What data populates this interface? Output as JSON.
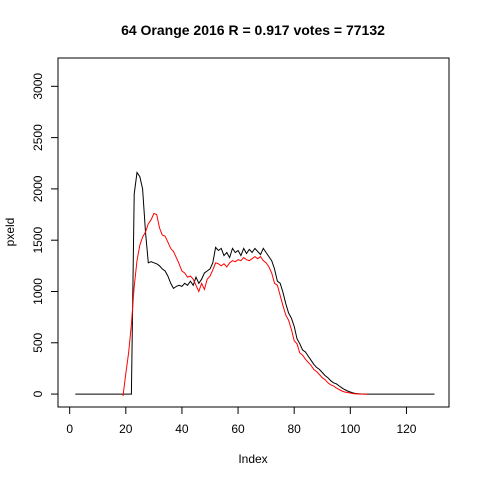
{
  "chart_data": {
    "type": "line",
    "title": "64 Orange 2016 R = 0.917 votes = 77132",
    "xlabel": "Index",
    "ylabel": "pxeld",
    "xlim": [
      1,
      130
    ],
    "ylim": [
      0,
      3150
    ],
    "x_ticks": [
      0,
      20,
      40,
      60,
      80,
      100,
      120
    ],
    "y_ticks": [
      0,
      500,
      1000,
      1500,
      2000,
      2500,
      3000
    ],
    "grid": false,
    "legend": "none",
    "colors": {
      "series1": "#000000",
      "series2": "#ff0000"
    },
    "series": [
      {
        "x": [
          2,
          3,
          4,
          5,
          6,
          7,
          8,
          9,
          10,
          11,
          12,
          13,
          14,
          15,
          16,
          17,
          18,
          19,
          20,
          21,
          22,
          23,
          24,
          25,
          26,
          27,
          28,
          29,
          30,
          31,
          32,
          33,
          34,
          35,
          36,
          37,
          38,
          39,
          40,
          41,
          42,
          43,
          44,
          45,
          46,
          47,
          48,
          49,
          50,
          51,
          52,
          53,
          54,
          55,
          56,
          57,
          58,
          59,
          60,
          61,
          62,
          63,
          64,
          65,
          66,
          67,
          68,
          69,
          70,
          71,
          72,
          73,
          74,
          75,
          76,
          77,
          78,
          79,
          80,
          81,
          82,
          83,
          84,
          85,
          86,
          87,
          88,
          89,
          90,
          91,
          92,
          93,
          94,
          95,
          96,
          97,
          98,
          99,
          100,
          101,
          102,
          103,
          104,
          105,
          106,
          107,
          108,
          109,
          110,
          111,
          112,
          113,
          114,
          115,
          116,
          117,
          118,
          119,
          120,
          121,
          122,
          123,
          124,
          125,
          126,
          127,
          128,
          129,
          130
        ],
        "y": [
          0,
          0,
          0,
          0,
          0,
          0,
          0,
          0,
          0,
          0,
          0,
          0,
          0,
          0,
          0,
          0,
          0,
          0,
          0,
          0,
          0,
          1950,
          2160,
          2120,
          2000,
          1580,
          1280,
          1290,
          1280,
          1270,
          1250,
          1220,
          1200,
          1150,
          1080,
          1030,
          1050,
          1060,
          1050,
          1080,
          1060,
          1100,
          1060,
          1140,
          1080,
          1120,
          1180,
          1200,
          1220,
          1280,
          1430,
          1400,
          1420,
          1350,
          1380,
          1330,
          1420,
          1380,
          1400,
          1350,
          1420,
          1370,
          1410,
          1380,
          1420,
          1390,
          1360,
          1420,
          1380,
          1340,
          1300,
          1220,
          1100,
          1080,
          990,
          880,
          790,
          740,
          660,
          540,
          490,
          430,
          410,
          370,
          330,
          290,
          260,
          240,
          210,
          180,
          160,
          130,
          110,
          100,
          80,
          60,
          45,
          30,
          20,
          10,
          6,
          3,
          1,
          0,
          0,
          0,
          0,
          0,
          0,
          0,
          0,
          0,
          0,
          0,
          0,
          0,
          0,
          0,
          0,
          0,
          0,
          0,
          0,
          0,
          0,
          0,
          0,
          0,
          0
        ]
      },
      {
        "x": [
          19,
          20,
          21,
          22,
          23,
          24,
          25,
          26,
          27,
          28,
          29,
          30,
          31,
          32,
          33,
          34,
          35,
          36,
          37,
          38,
          39,
          40,
          41,
          42,
          43,
          44,
          45,
          46,
          47,
          48,
          49,
          50,
          51,
          52,
          53,
          54,
          55,
          56,
          57,
          58,
          59,
          60,
          61,
          62,
          63,
          64,
          65,
          66,
          67,
          68,
          69,
          70,
          71,
          72,
          73,
          74,
          75,
          76,
          77,
          78,
          79,
          80,
          81,
          82,
          83,
          84,
          85,
          86,
          87,
          88,
          89,
          90,
          91,
          92,
          93,
          94,
          95,
          96,
          97,
          98,
          99,
          100,
          101,
          102,
          103,
          104,
          105,
          106
        ],
        "y": [
          -20,
          200,
          400,
          680,
          1050,
          1300,
          1450,
          1530,
          1580,
          1660,
          1700,
          1760,
          1750,
          1620,
          1550,
          1540,
          1480,
          1420,
          1390,
          1330,
          1270,
          1200,
          1180,
          1140,
          1150,
          1120,
          1060,
          1000,
          1080,
          1020,
          1120,
          1150,
          1210,
          1280,
          1270,
          1250,
          1270,
          1240,
          1280,
          1300,
          1290,
          1310,
          1300,
          1330,
          1310,
          1300,
          1320,
          1340,
          1320,
          1340,
          1300,
          1280,
          1240,
          1180,
          1080,
          1060,
          960,
          860,
          770,
          720,
          630,
          520,
          490,
          400,
          380,
          340,
          310,
          280,
          240,
          220,
          190,
          160,
          140,
          110,
          90,
          80,
          60,
          45,
          30,
          20,
          15,
          10,
          5,
          2,
          1,
          0,
          0,
          0
        ]
      }
    ]
  }
}
